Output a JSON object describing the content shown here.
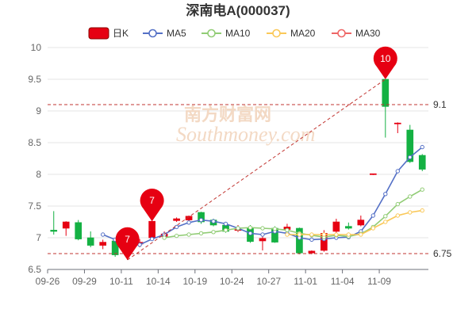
{
  "chart_data": {
    "type": "candlestick",
    "title": "深南电A(000037)",
    "legend": {
      "position": "top-center",
      "items": [
        {
          "label": "日K",
          "color": "#e60012",
          "kind": "candle"
        },
        {
          "label": "MA5",
          "color": "#5470c6",
          "kind": "line"
        },
        {
          "label": "MA10",
          "color": "#91cc75",
          "kind": "line"
        },
        {
          "label": "MA20",
          "color": "#fac858",
          "kind": "line"
        },
        {
          "label": "MA30",
          "color": "#ee6666",
          "kind": "line"
        }
      ]
    },
    "watermark": {
      "cn": "南方财富网",
      "en": "Southmoney.com"
    },
    "ylim": [
      6.5,
      10
    ],
    "y_ticks": [
      "10",
      "9.5",
      "9",
      "8.5",
      "8",
      "7.5",
      "7",
      "6.5"
    ],
    "x_ticks": [
      "09-26",
      "09-29",
      "10-11",
      "10-14",
      "10-19",
      "10-24",
      "10-27",
      "11-01",
      "11-04",
      "11-09"
    ],
    "x_tick_index": [
      0,
      3,
      6,
      9,
      12,
      15,
      18,
      21,
      24,
      27
    ],
    "grid": true,
    "up_color": "#e60012",
    "down_color": "#14b143",
    "candles": [
      {
        "o": 7.12,
        "c": 7.1,
        "h": 7.42,
        "l": 7.05
      },
      {
        "o": 7.15,
        "c": 7.25,
        "h": 7.26,
        "l": 7.03
      },
      {
        "o": 7.24,
        "c": 6.98,
        "h": 7.28,
        "l": 6.96
      },
      {
        "o": 7.0,
        "c": 6.88,
        "h": 7.1,
        "l": 6.85
      },
      {
        "o": 6.88,
        "c": 6.93,
        "h": 6.97,
        "l": 6.82
      },
      {
        "o": 6.95,
        "c": 6.73,
        "h": 7.0,
        "l": 6.7
      },
      {
        "o": 6.85,
        "c": 7.0,
        "h": 7.01,
        "l": 6.65
      },
      {
        "o": 6.9,
        "c": 6.93,
        "h": 6.98,
        "l": 6.85
      },
      {
        "o": 7.0,
        "c": 7.26,
        "h": 7.27,
        "l": 6.96
      },
      {
        "o": 7.02,
        "c": 7.06,
        "h": 7.1,
        "l": 7.0
      },
      {
        "o": 7.27,
        "c": 7.3,
        "h": 7.32,
        "l": 7.25
      },
      {
        "o": 7.28,
        "c": 7.34,
        "h": 7.35,
        "l": 7.24
      },
      {
        "o": 7.4,
        "c": 7.25,
        "h": 7.41,
        "l": 7.22
      },
      {
        "o": 7.28,
        "c": 7.2,
        "h": 7.3,
        "l": 7.18
      },
      {
        "o": 7.2,
        "c": 7.1,
        "h": 7.22,
        "l": 7.08
      },
      {
        "o": 7.12,
        "c": 7.13,
        "h": 7.2,
        "l": 7.09
      },
      {
        "o": 7.15,
        "c": 6.94,
        "h": 7.2,
        "l": 6.92
      },
      {
        "o": 6.95,
        "c": 6.99,
        "h": 7.02,
        "l": 6.8
      },
      {
        "o": 7.15,
        "c": 6.93,
        "h": 7.18,
        "l": 6.92
      },
      {
        "o": 7.13,
        "c": 7.17,
        "h": 7.22,
        "l": 7.08
      },
      {
        "o": 7.15,
        "c": 6.76,
        "h": 7.16,
        "l": 6.74
      },
      {
        "o": 6.76,
        "c": 6.79,
        "h": 6.8,
        "l": 6.74
      },
      {
        "o": 6.8,
        "c": 7.07,
        "h": 7.12,
        "l": 6.78
      },
      {
        "o": 7.1,
        "c": 7.25,
        "h": 7.3,
        "l": 7.08
      },
      {
        "o": 7.18,
        "c": 7.15,
        "h": 7.24,
        "l": 7.13
      },
      {
        "o": 7.2,
        "c": 7.28,
        "h": 7.35,
        "l": 7.18
      },
      {
        "o": 8.0,
        "c": 8.01,
        "h": 8.01,
        "l": 7.99
      },
      {
        "o": 9.5,
        "c": 9.07,
        "h": 9.5,
        "l": 8.58
      },
      {
        "o": 8.8,
        "c": 8.81,
        "h": 8.82,
        "l": 8.65
      },
      {
        "o": 8.7,
        "c": 8.2,
        "h": 8.78,
        "l": 8.18
      },
      {
        "o": 8.3,
        "c": 8.08,
        "h": 8.32,
        "l": 8.05
      }
    ],
    "series": [
      {
        "name": "MA5",
        "color": "#5470c6",
        "values": [
          null,
          null,
          null,
          null,
          7.05,
          6.97,
          6.9,
          6.89,
          6.98,
          7.05,
          7.17,
          7.24,
          7.28,
          7.26,
          7.22,
          7.15,
          7.07,
          7.05,
          7.1,
          7.07,
          7.0,
          6.97,
          6.98,
          7.0,
          7.01,
          7.1,
          7.35,
          7.69,
          8.05,
          8.27,
          8.43
        ]
      },
      {
        "name": "MA10",
        "color": "#91cc75",
        "values": [
          null,
          null,
          null,
          null,
          null,
          null,
          null,
          null,
          null,
          7.0,
          7.03,
          7.05,
          7.07,
          7.09,
          7.12,
          7.15,
          7.16,
          7.15,
          7.14,
          7.12,
          7.07,
          7.04,
          7.01,
          7.04,
          7.02,
          7.06,
          7.17,
          7.34,
          7.53,
          7.65,
          7.76
        ]
      },
      {
        "name": "MA20",
        "color": "#fac858",
        "values": [
          null,
          null,
          null,
          null,
          null,
          null,
          null,
          null,
          null,
          null,
          null,
          null,
          null,
          null,
          null,
          null,
          null,
          null,
          null,
          7.05,
          7.05,
          7.05,
          7.05,
          7.05,
          7.05,
          7.05,
          7.15,
          7.25,
          7.35,
          7.4,
          7.43
        ]
      }
    ],
    "markers": [
      {
        "label": "10",
        "index": 27,
        "value": 9.5
      },
      {
        "label": "7",
        "index": 8,
        "value": 7.26
      },
      {
        "label": "7",
        "index": 6,
        "value": 6.65
      }
    ],
    "ref_lines": [
      {
        "value": 9.1,
        "label": "9.1"
      },
      {
        "value": 6.75,
        "label": "6.75"
      }
    ],
    "trend_line": {
      "from": {
        "index": 6,
        "value": 6.65
      },
      "to": {
        "index": 27,
        "value": 9.5
      }
    }
  }
}
